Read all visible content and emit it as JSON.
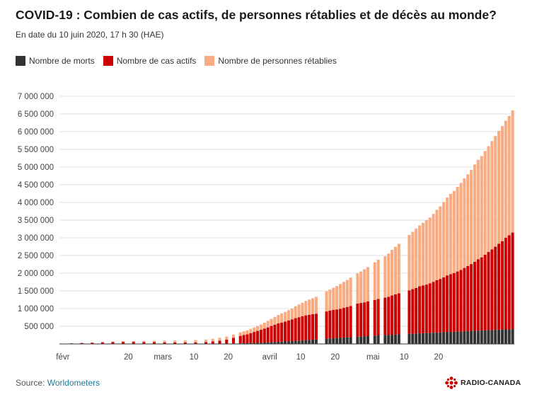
{
  "title": "COVID-19 : Combien de cas actifs, de personnes rétablies et de décès au monde?",
  "subtitle": "En date du 10 juin 2020, 17 h 30 (HAE)",
  "legend": {
    "deaths": "Nombre de morts",
    "active": "Nombre de cas actifs",
    "recovered": "Nombre de personnes rétablies"
  },
  "colors": {
    "deaths": "#333333",
    "active": "#cc0000",
    "recovered": "#f9ab81",
    "grid": "#e2e2e2",
    "axis_text": "#444444",
    "source_link": "#1c7d96",
    "brand": "#cc0000"
  },
  "source": {
    "label": "Source:",
    "link": "Worldometers"
  },
  "brand": {
    "text": "RADIO-CANADA",
    "icon": "radio-canada-gem-icon"
  },
  "chart_data": {
    "type": "bar",
    "stacked": true,
    "title": "COVID-19 : Combien de cas actifs, de personnes rétablies et de décès au monde?",
    "ylim": [
      0,
      7500000
    ],
    "y_ticks": [
      500000,
      1000000,
      1500000,
      2000000,
      2500000,
      3000000,
      3500000,
      4000000,
      4500000,
      5000000,
      5500000,
      6000000,
      6500000,
      7000000
    ],
    "y_tick_labels": [
      "500 000",
      "1 000 000",
      "1 500 000",
      "2 000 000",
      "2 500 000",
      "3 000 000",
      "3 500 000",
      "4 000 000",
      "4 500 000",
      "5 000 000",
      "5 500 000",
      "6 000 000",
      "6 500 000",
      "7 000 000"
    ],
    "grid": true,
    "legend_position": "top-left",
    "x_tick_labels": [
      {
        "date": "2020-02-01",
        "label": "févr"
      },
      {
        "date": "2020-02-20",
        "label": "20"
      },
      {
        "date": "2020-03-01",
        "label": "mars"
      },
      {
        "date": "2020-03-10",
        "label": "10"
      },
      {
        "date": "2020-03-20",
        "label": "20"
      },
      {
        "date": "2020-04-01",
        "label": "avril"
      },
      {
        "date": "2020-04-10",
        "label": "10"
      },
      {
        "date": "2020-04-20",
        "label": "20"
      },
      {
        "date": "2020-05-01",
        "label": "mai"
      },
      {
        "date": "2020-05-10",
        "label": "10"
      },
      {
        "date": "2020-05-20",
        "label": "20"
      }
    ],
    "x": [
      "2020-01-31",
      "2020-02-03",
      "2020-02-06",
      "2020-02-09",
      "2020-02-12",
      "2020-02-15",
      "2020-02-18",
      "2020-02-21",
      "2020-02-24",
      "2020-02-27",
      "2020-03-01",
      "2020-03-04",
      "2020-03-07",
      "2020-03-10",
      "2020-03-13",
      "2020-03-15",
      "2020-03-17",
      "2020-03-19",
      "2020-03-21",
      "2020-03-23",
      "2020-03-24",
      "2020-03-25",
      "2020-03-26",
      "2020-03-27",
      "2020-03-28",
      "2020-03-29",
      "2020-03-30",
      "2020-03-31",
      "2020-04-01",
      "2020-04-02",
      "2020-04-03",
      "2020-04-04",
      "2020-04-05",
      "2020-04-06",
      "2020-04-07",
      "2020-04-08",
      "2020-04-09",
      "2020-04-10",
      "2020-04-11",
      "2020-04-12",
      "2020-04-13",
      "2020-04-14",
      "2020-04-17",
      "2020-04-18",
      "2020-04-19",
      "2020-04-20",
      "2020-04-21",
      "2020-04-22",
      "2020-04-23",
      "2020-04-24",
      "2020-04-26",
      "2020-04-27",
      "2020-04-28",
      "2020-04-29",
      "2020-05-01",
      "2020-05-02",
      "2020-05-04",
      "2020-05-05",
      "2020-05-06",
      "2020-05-07",
      "2020-05-08",
      "2020-05-11",
      "2020-05-12",
      "2020-05-13",
      "2020-05-14",
      "2020-05-15",
      "2020-05-16",
      "2020-05-17",
      "2020-05-18",
      "2020-05-19",
      "2020-05-20",
      "2020-05-21",
      "2020-05-22",
      "2020-05-23",
      "2020-05-24",
      "2020-05-25",
      "2020-05-26",
      "2020-05-27",
      "2020-05-28",
      "2020-05-29",
      "2020-05-30",
      "2020-05-31",
      "2020-06-01",
      "2020-06-02",
      "2020-06-03",
      "2020-06-04",
      "2020-06-05",
      "2020-06-06",
      "2020-06-07",
      "2020-06-08",
      "2020-06-09",
      "2020-06-10"
    ],
    "series": [
      {
        "name": "Nombre de morts",
        "values": [
          200,
          400,
          600,
          900,
          1300,
          1700,
          2000,
          2300,
          2600,
          2800,
          3000,
          3300,
          3600,
          4300,
          5400,
          6500,
          7900,
          9900,
          12700,
          16500,
          18900,
          21300,
          24100,
          27400,
          30900,
          34800,
          38700,
          43300,
          48300,
          54100,
          59900,
          65500,
          70400,
          75400,
          81600,
          88200,
          95000,
          102000,
          108700,
          114200,
          119600,
          126000,
          147000,
          154400,
          159900,
          165100,
          171800,
          178500,
          184800,
          191100,
          203000,
          208300,
          214600,
          220900,
          234100,
          239500,
          247500,
          252700,
          258500,
          264200,
          269400,
          284400,
          288300,
          293400,
          298400,
          303600,
          308100,
          312000,
          316400,
          321600,
          326500,
          331700,
          336700,
          340900,
          344300,
          347700,
          353000,
          357800,
          362600,
          367600,
          371700,
          374800,
          378000,
          382800,
          388400,
          393400,
          398100,
          401600,
          405000,
          408800,
          413600,
          418500
        ]
      },
      {
        "name": "Nombre de cas actifs",
        "values": [
          9000,
          17000,
          27000,
          36000,
          46000,
          55000,
          56000,
          55000,
          52000,
          48000,
          43000,
          40000,
          40000,
          41000,
          50000,
          63000,
          85000,
          113000,
          158000,
          210000,
          231000,
          252000,
          282000,
          311000,
          338000,
          364000,
          395000,
          424000,
          459000,
          490000,
          520000,
          540000,
          560000,
          590000,
          610000,
          640000,
          660000,
          680000,
          700000,
          710000,
          720000,
          730000,
          770000,
          790000,
          800000,
          810000,
          820000,
          840000,
          860000,
          880000,
          940000,
          950000,
          960000,
          980000,
          1010000,
          1030000,
          1060000,
          1080000,
          1110000,
          1140000,
          1160000,
          1230000,
          1260000,
          1290000,
          1330000,
          1350000,
          1370000,
          1400000,
          1440000,
          1480000,
          1510000,
          1550000,
          1600000,
          1630000,
          1660000,
          1700000,
          1740000,
          1790000,
          1840000,
          1890000,
          1950000,
          2020000,
          2070000,
          2140000,
          2210000,
          2280000,
          2350000,
          2430000,
          2500000,
          2590000,
          2660000,
          2730000
        ]
      },
      {
        "name": "Nombre de personnes rétablies",
        "values": [
          200,
          700,
          1700,
          3200,
          6200,
          9800,
          16000,
          23000,
          30000,
          37000,
          45000,
          53000,
          58000,
          64000,
          70000,
          75000,
          81000,
          86000,
          96000,
          102000,
          106000,
          110000,
          117000,
          127000,
          140000,
          152000,
          166000,
          182000,
          200000,
          218000,
          236000,
          258000,
          274000,
          290000,
          308000,
          336000,
          361000,
          381000,
          404000,
          430000,
          451000,
          477000,
          570000,
          594000,
          626000,
          659000,
          700000,
          735000,
          762000,
          802000,
          850000,
          888000,
          935000,
          972000,
          1063000,
          1110000,
          1170000,
          1220000,
          1290000,
          1340000,
          1400000,
          1570000,
          1620000,
          1680000,
          1720000,
          1770000,
          1820000,
          1860000,
          1920000,
          1990000,
          2050000,
          2130000,
          2200000,
          2270000,
          2320000,
          2390000,
          2460000,
          2530000,
          2590000,
          2660000,
          2750000,
          2810000,
          2860000,
          2930000,
          2990000,
          3060000,
          3130000,
          3190000,
          3250000,
          3310000,
          3370000,
          3450000
        ]
      }
    ]
  }
}
